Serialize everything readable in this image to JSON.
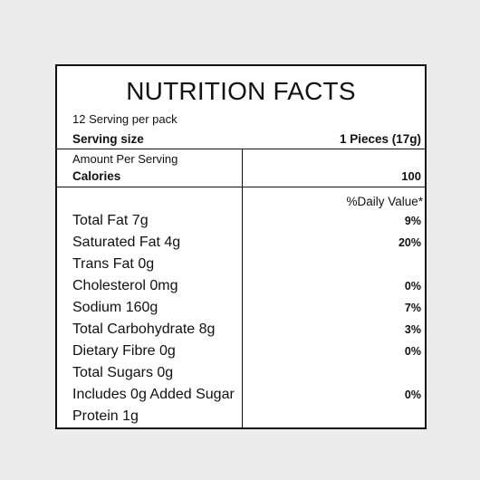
{
  "label": {
    "title": "NUTRITION FACTS",
    "servings_per_pack": "12 Serving per pack",
    "serving_size_label": "Serving size",
    "serving_size_value": "1 Pieces (17g)",
    "amount_per_serving": "Amount Per Serving",
    "calories_label": "Calories",
    "calories_value": "100",
    "daily_value_header": "%Daily Value*",
    "nutrients": [
      {
        "name": "Total Fat 7g",
        "dv": "9%"
      },
      {
        "name": "Saturated Fat 4g",
        "dv": "20%"
      },
      {
        "name": "Trans Fat 0g",
        "dv": ""
      },
      {
        "name": "Cholesterol 0mg",
        "dv": "0%"
      },
      {
        "name": "Sodium 160g",
        "dv": "7%"
      },
      {
        "name": "Total Carbohydrate 8g",
        "dv": "3%"
      },
      {
        "name": "Dietary Fibre 0g",
        "dv": "0%"
      },
      {
        "name": "Total Sugars 0g",
        "dv": ""
      },
      {
        "name": "Includes 0g Added Sugar",
        "dv": "0%"
      },
      {
        "name": "Protein 1g",
        "dv": ""
      }
    ]
  }
}
